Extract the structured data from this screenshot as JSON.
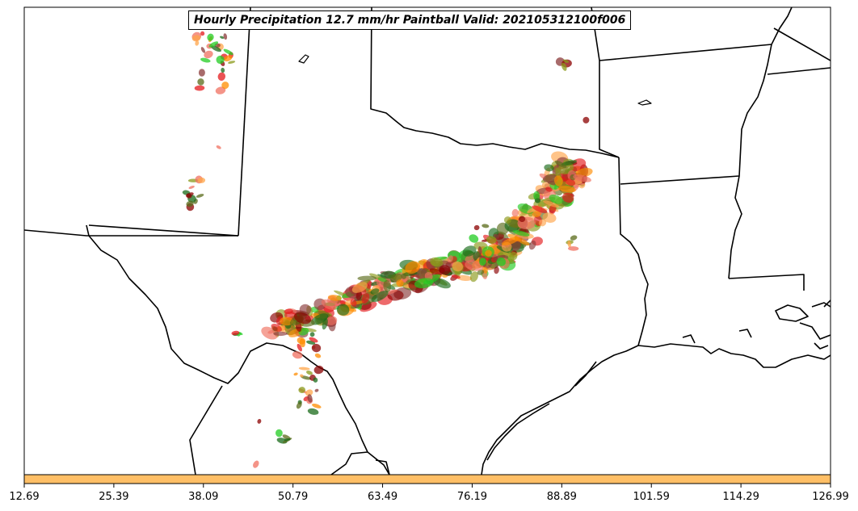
{
  "title": "Hourly Precipitation 12.7 mm/hr Paintball Valid: 202105312100f006",
  "colorbar": {
    "fill_color": "#ffbf66",
    "ticks": [
      "12.69",
      "25.39",
      "38.09",
      "50.79",
      "63.49",
      "76.19",
      "88.89",
      "101.59",
      "114.29",
      "126.99"
    ]
  },
  "palette": {
    "dark_red": "#8b0000",
    "red": "#e41a1c",
    "orange": "#ff8c00",
    "light_orange": "#ffa54a",
    "green": "#22cc22",
    "dark_green": "#1a6b1a",
    "olive": "#8a9a1a",
    "dark_olive": "#5a6b1a",
    "brown": "#8b3a3a",
    "salmon": "#f07060",
    "gray": "#404040",
    "boundary": "#000000"
  }
}
